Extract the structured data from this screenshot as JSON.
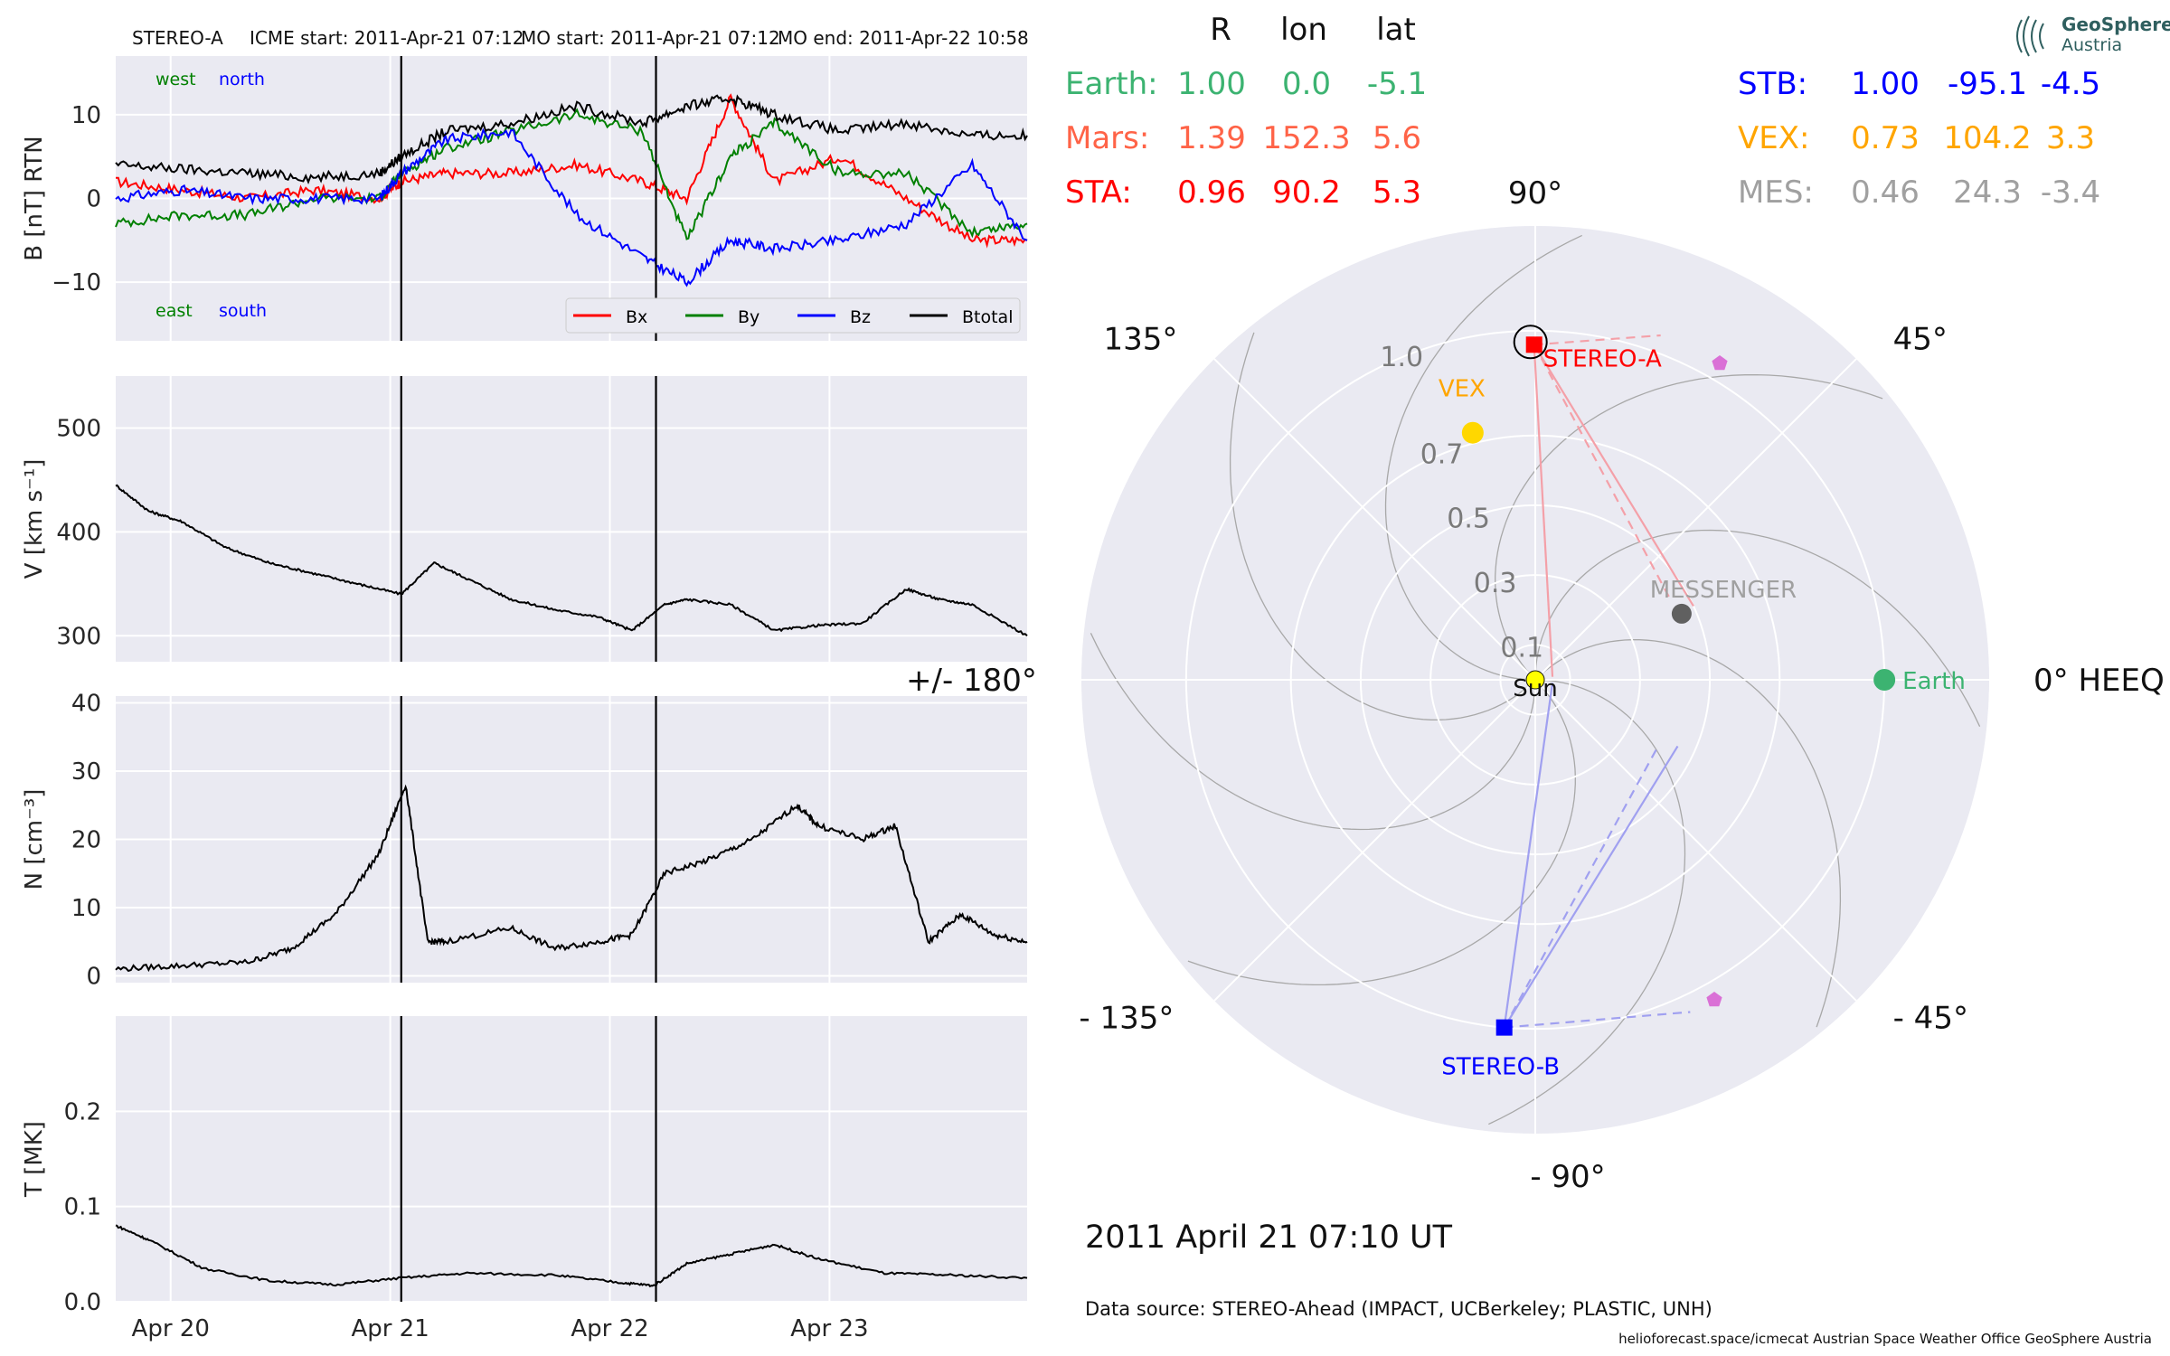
{
  "header": {
    "spacecraft": "STEREO-A",
    "icme_start": "ICME start: 2011-Apr-21 07:12",
    "mo_start": "MO start: 2011-Apr-21 07:12",
    "mo_end": "MO end: 2011-Apr-22 10:58"
  },
  "colors": {
    "bx": "#ff0000",
    "by": "#008000",
    "bz": "#0000ff",
    "btotal": "#000000",
    "earth": "#3cb371",
    "mars": "#ff6347",
    "sta": "#ff0000",
    "stb": "#0000ff",
    "vex": "#ffa500",
    "mes": "#a0a0a0"
  },
  "chart_data": [
    {
      "type": "line",
      "name": "magnetic field",
      "ylabel": "B [nT] RTN",
      "ylim": [
        -17,
        17
      ],
      "yticks": [
        10,
        0,
        -10
      ],
      "ytick_labels": [
        "10",
        "0",
        "−10"
      ],
      "annotations": {
        "west": "west",
        "north": "north",
        "east": "east",
        "south": "south"
      },
      "legend_position": "lower-right",
      "series": [
        {
          "name": "Bx",
          "x": [
            0,
            0.3,
            0.6,
            0.9,
            1.2,
            1.3,
            1.5,
            1.8,
            2.1,
            2.4,
            2.6,
            2.8,
            3.0,
            3.3,
            3.6,
            3.9,
            4.15
          ],
          "values": [
            2,
            1,
            0,
            1,
            0,
            2,
            3,
            3,
            4,
            2,
            0,
            12,
            2,
            5,
            0,
            -5,
            -5
          ]
        },
        {
          "name": "By",
          "x": [
            0,
            0.3,
            0.6,
            0.9,
            1.2,
            1.3,
            1.5,
            1.8,
            2.1,
            2.4,
            2.6,
            2.8,
            3.0,
            3.3,
            3.6,
            3.9,
            4.15
          ],
          "values": [
            -3,
            -2,
            -2,
            0,
            0,
            3,
            6,
            8,
            10,
            8,
            -5,
            5,
            9,
            3,
            3,
            -4,
            -3
          ]
        },
        {
          "name": "Bz",
          "x": [
            0,
            0.3,
            0.6,
            0.9,
            1.2,
            1.3,
            1.5,
            1.8,
            2.1,
            2.4,
            2.6,
            2.8,
            3.0,
            3.3,
            3.6,
            3.9,
            4.15
          ],
          "values": [
            0,
            1,
            0,
            0,
            0,
            3,
            7,
            8,
            -2,
            -7,
            -10,
            -5,
            -6,
            -5,
            -3,
            4,
            -5
          ]
        },
        {
          "name": "Btotal",
          "x": [
            0,
            0.3,
            0.6,
            0.9,
            1.2,
            1.3,
            1.5,
            1.8,
            2.1,
            2.4,
            2.6,
            2.8,
            3.0,
            3.3,
            3.6,
            3.9,
            4.15
          ],
          "values": [
            4,
            3.5,
            3,
            2.5,
            3,
            5,
            8,
            9,
            11,
            9,
            11,
            12,
            10,
            8,
            9,
            7.5,
            7.5
          ]
        }
      ]
    },
    {
      "type": "line",
      "name": "speed",
      "ylabel": "V [km s⁻¹]",
      "ylim": [
        275,
        550
      ],
      "yticks": [
        500,
        400,
        300
      ],
      "series": [
        {
          "name": "V",
          "x": [
            0,
            0.15,
            0.3,
            0.5,
            0.7,
            0.9,
            1.1,
            1.3,
            1.45,
            1.6,
            1.8,
            2.0,
            2.2,
            2.35,
            2.5,
            2.6,
            2.8,
            3.0,
            3.2,
            3.4,
            3.6,
            3.75,
            3.9,
            4.15
          ],
          "values": [
            445,
            420,
            410,
            385,
            370,
            360,
            350,
            340,
            370,
            355,
            335,
            325,
            318,
            305,
            330,
            335,
            330,
            305,
            310,
            312,
            345,
            335,
            330,
            300
          ]
        }
      ]
    },
    {
      "type": "line",
      "name": "density",
      "ylabel": "N [cm⁻³]",
      "ylim": [
        -1,
        41
      ],
      "yticks": [
        40,
        30,
        20,
        10,
        0
      ],
      "series": [
        {
          "name": "N",
          "x": [
            0,
            0.3,
            0.6,
            0.8,
            1.0,
            1.2,
            1.32,
            1.42,
            1.5,
            1.8,
            2.0,
            2.2,
            2.35,
            2.5,
            2.7,
            2.9,
            3.1,
            3.2,
            3.4,
            3.55,
            3.7,
            3.85,
            4.0,
            4.15
          ],
          "values": [
            1,
            1.5,
            2,
            4,
            9,
            18,
            28,
            5,
            5,
            7,
            4,
            5,
            6,
            15,
            17,
            20,
            25,
            22,
            20,
            22,
            5,
            9,
            6,
            5
          ]
        }
      ]
    },
    {
      "type": "line",
      "name": "temperature",
      "ylabel": "T [MK]",
      "ylim": [
        0,
        0.3
      ],
      "yticks": [
        0.2,
        0.1,
        0.0
      ],
      "ytick_labels": [
        "0.2",
        "0.1",
        "0.0"
      ],
      "xticks": [
        0.25,
        1.25,
        2.25,
        3.25
      ],
      "xtick_labels": [
        "Apr 20",
        "Apr 21",
        "Apr 22",
        "Apr 23"
      ],
      "xlim": [
        0,
        4.15
      ],
      "event_lines": [
        1.3,
        2.46
      ],
      "series": [
        {
          "name": "T",
          "x": [
            0,
            0.15,
            0.4,
            0.7,
            1.0,
            1.3,
            1.6,
            2.0,
            2.3,
            2.45,
            2.6,
            2.8,
            3.0,
            3.2,
            3.5,
            3.8,
            4.15
          ],
          "values": [
            0.08,
            0.065,
            0.035,
            0.022,
            0.018,
            0.025,
            0.03,
            0.028,
            0.02,
            0.017,
            0.04,
            0.05,
            0.06,
            0.045,
            0.03,
            0.028,
            0.025
          ]
        }
      ]
    },
    {
      "type": "scatter",
      "name": "polar position plot",
      "coordinate_system": "HEEQ",
      "rlim": [
        0,
        1.3
      ],
      "r_tick_labels": [
        "0.1",
        "0.3",
        "0.5",
        "0.7",
        "1.0"
      ],
      "r_ticks": [
        0.1,
        0.3,
        0.5,
        0.7,
        1.0
      ],
      "angle_labels": {
        "a90": "90°",
        "a45": "45°",
        "a0": "0° HEEQ",
        "am45": "- 45°",
        "am90": "- 90°",
        "am135": "- 135°",
        "a180": "+/- 180°",
        "a135": "135°"
      },
      "objects": [
        {
          "name": "Sun",
          "r": 0,
          "lon": 0
        },
        {
          "name": "Earth",
          "r": 1.0,
          "lon": 0
        },
        {
          "name": "STEREO-A",
          "r": 0.96,
          "lon": 90.2
        },
        {
          "name": "STEREO-B",
          "r": 1.0,
          "lon": -95.1
        },
        {
          "name": "VEX",
          "r": 0.73,
          "lon": 104.2
        },
        {
          "name": "MESSENGER",
          "r": 0.46,
          "lon": 24.3
        }
      ]
    }
  ],
  "table": {
    "headers": {
      "r": "R",
      "lon": "lon",
      "lat": "lat"
    },
    "left": [
      {
        "label": "Earth:",
        "r": "1.00",
        "lon": "0.0",
        "lat": "-5.1",
        "color": "#3cb371"
      },
      {
        "label": "Mars:",
        "r": "1.39",
        "lon": "152.3",
        "lat": "5.6",
        "color": "#ff6347"
      },
      {
        "label": "STA:",
        "r": "0.96",
        "lon": "90.2",
        "lat": "5.3",
        "color": "#ff0000"
      }
    ],
    "right": [
      {
        "label": "STB:",
        "r": "1.00",
        "lon": "-95.1",
        "lat": "-4.5",
        "color": "#0000ff"
      },
      {
        "label": "VEX:",
        "r": "0.73",
        "lon": "104.2",
        "lat": "3.3",
        "color": "#ffa500"
      },
      {
        "label": "MES:",
        "r": "0.46",
        "lon": "24.3",
        "lat": "-3.4",
        "color": "#a0a0a0"
      }
    ]
  },
  "logo": {
    "line1": "GeoSphere",
    "line2": "Austria"
  },
  "datetime": "2011 April 21  07:10 UT",
  "data_source": "Data source: STEREO-Ahead (IMPACT, UCBerkeley; PLASTIC, UNH)",
  "footer": "helioforecast.space/icmecat   Austrian Space Weather Office   GeoSphere Austria"
}
